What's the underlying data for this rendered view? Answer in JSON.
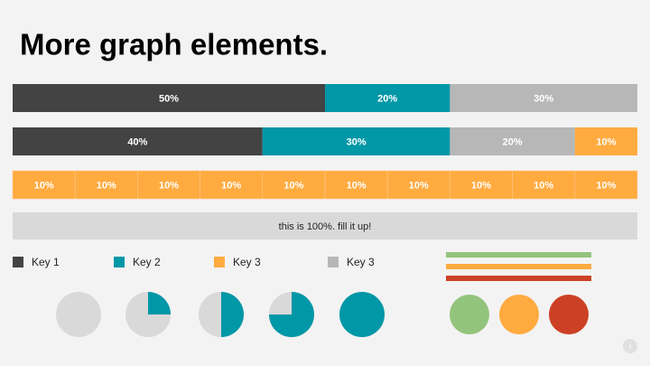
{
  "title": "More graph elements.",
  "stacked_bars": [
    {
      "segments": [
        {
          "value": 50,
          "label": "50%",
          "color": "#434343"
        },
        {
          "value": 20,
          "label": "20%",
          "color": "#0097a7"
        },
        {
          "value": 30,
          "label": "30%",
          "color": "#b7b7b7"
        }
      ]
    },
    {
      "segments": [
        {
          "value": 40,
          "label": "40%",
          "color": "#434343"
        },
        {
          "value": 30,
          "label": "30%",
          "color": "#0097a7"
        },
        {
          "value": 20,
          "label": "20%",
          "color": "#b7b7b7"
        },
        {
          "value": 10,
          "label": "10%",
          "color": "#ffab40"
        }
      ]
    },
    {
      "segments": [
        {
          "value": 10,
          "label": "10%",
          "color": "#ffab40"
        },
        {
          "value": 10,
          "label": "10%",
          "color": "#ffab40"
        },
        {
          "value": 10,
          "label": "10%",
          "color": "#ffab40"
        },
        {
          "value": 10,
          "label": "10%",
          "color": "#ffab40"
        },
        {
          "value": 10,
          "label": "10%",
          "color": "#ffab40"
        },
        {
          "value": 10,
          "label": "10%",
          "color": "#ffab40"
        },
        {
          "value": 10,
          "label": "10%",
          "color": "#ffab40"
        },
        {
          "value": 10,
          "label": "10%",
          "color": "#ffab40"
        },
        {
          "value": 10,
          "label": "10%",
          "color": "#ffab40"
        },
        {
          "value": 10,
          "label": "10%",
          "color": "#ffab40"
        }
      ]
    }
  ],
  "fill_bar": {
    "text": "this is 100%. fill it up!",
    "value": 100,
    "color": "#d9d9d9"
  },
  "keys": [
    {
      "name": "Key 1",
      "color": "#434343"
    },
    {
      "name": "Key 2",
      "color": "#0097a7"
    },
    {
      "name": "Key 3",
      "color": "#ffab40"
    },
    {
      "name": "Key 3",
      "color": "#b7b7b7"
    }
  ],
  "pies": {
    "values": [
      0,
      25,
      50,
      75,
      100
    ],
    "color": "#0097a7",
    "base_color": "#d9d9d9"
  },
  "lines": [
    "#93c47d",
    "#ffab40",
    "#cc4125"
  ],
  "circles": [
    "#93c47d",
    "#ffab40",
    "#cc4125"
  ]
}
